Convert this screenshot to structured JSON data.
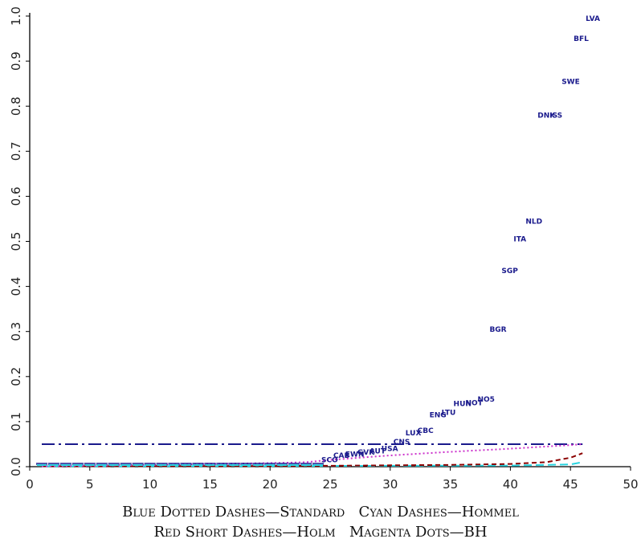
{
  "chart_data": {
    "type": "scatter",
    "xlim": [
      0,
      50
    ],
    "ylim": [
      0,
      1.0
    ],
    "x_ticks": [
      0,
      5,
      10,
      15,
      20,
      25,
      30,
      35,
      40,
      45,
      50
    ],
    "y_ticks": [
      0.0,
      0.1,
      0.2,
      0.3,
      0.4,
      0.5,
      0.6,
      0.7,
      0.8,
      0.9,
      1.0
    ],
    "y_tick_labels": [
      "0.0",
      "0.1",
      "0.2",
      "0.3",
      "0.4",
      "0.5",
      "0.6",
      "0.7",
      "0.8",
      "0.9",
      "1.0"
    ],
    "grid": false,
    "points": [
      {
        "label": "SCO",
        "x": 25,
        "y": 0.015
      },
      {
        "label": "CAB",
        "x": 26,
        "y": 0.025
      },
      {
        "label": "EWN",
        "x": 27,
        "y": 0.028
      },
      {
        "label": "GVK",
        "x": 28,
        "y": 0.032
      },
      {
        "label": "AUT",
        "x": 29,
        "y": 0.035
      },
      {
        "label": "USA",
        "x": 30,
        "y": 0.04
      },
      {
        "label": "CNS",
        "x": 31,
        "y": 0.055
      },
      {
        "label": "LUX",
        "x": 32,
        "y": 0.075
      },
      {
        "label": "CBC",
        "x": 33,
        "y": 0.08
      },
      {
        "label": "ENG",
        "x": 34,
        "y": 0.115
      },
      {
        "label": "LTU",
        "x": 35,
        "y": 0.12
      },
      {
        "label": "HUN",
        "x": 36,
        "y": 0.14
      },
      {
        "label": "NOT",
        "x": 37,
        "y": 0.142
      },
      {
        "label": "NO5",
        "x": 38,
        "y": 0.15
      },
      {
        "label": "BGR",
        "x": 39,
        "y": 0.305
      },
      {
        "label": "SGP",
        "x": 40,
        "y": 0.435
      },
      {
        "label": "ITA",
        "x": 41,
        "y": 0.505
      },
      {
        "label": "NLD",
        "x": 42,
        "y": 0.545
      },
      {
        "label": "DNK",
        "x": 43,
        "y": 0.78
      },
      {
        "label": "ISS",
        "x": 44,
        "y": 0.78
      },
      {
        "label": "SWE",
        "x": 45,
        "y": 0.855
      },
      {
        "label": "BFL",
        "x": 46,
        "y": 0.95
      },
      {
        "label": "LVA",
        "x": 47,
        "y": 0.995
      }
    ],
    "low_point_count": 24,
    "series": [
      {
        "name": "Standard",
        "style": "dotted-dashes",
        "color": "#1a1a8c",
        "x": [
          1,
          46
        ],
        "y": [
          0.05,
          0.05
        ]
      },
      {
        "name": "Hommel",
        "style": "dashes",
        "color": "#29d4e0",
        "x": [
          1,
          10,
          20,
          30,
          40,
          45,
          46
        ],
        "y": [
          0.001,
          0.0012,
          0.0014,
          0.002,
          0.0025,
          0.005,
          0.01
        ]
      },
      {
        "name": "Holm",
        "style": "short-dashes",
        "color": "#8b0000",
        "x": [
          1,
          10,
          20,
          25,
          30,
          35,
          40,
          43,
          44,
          45,
          46
        ],
        "y": [
          0.001,
          0.0012,
          0.0015,
          0.002,
          0.003,
          0.004,
          0.006,
          0.01,
          0.015,
          0.02,
          0.03
        ]
      },
      {
        "name": "BH",
        "style": "dots",
        "color": "#cc33cc",
        "x": [
          1,
          10,
          20,
          23,
          25,
          30,
          35,
          40,
          45,
          46
        ],
        "y": [
          0.001,
          0.004,
          0.008,
          0.01,
          0.015,
          0.025,
          0.033,
          0.04,
          0.048,
          0.05
        ]
      }
    ]
  },
  "legend": {
    "line1": "Blue Dotted Dashes—Standard   Cyan Dashes—Hommel",
    "line2": "Red Short Dashes—Holm   Magenta Dots—BH"
  },
  "colors": {
    "axis": "#000000",
    "labels": "#1a1a8c"
  }
}
